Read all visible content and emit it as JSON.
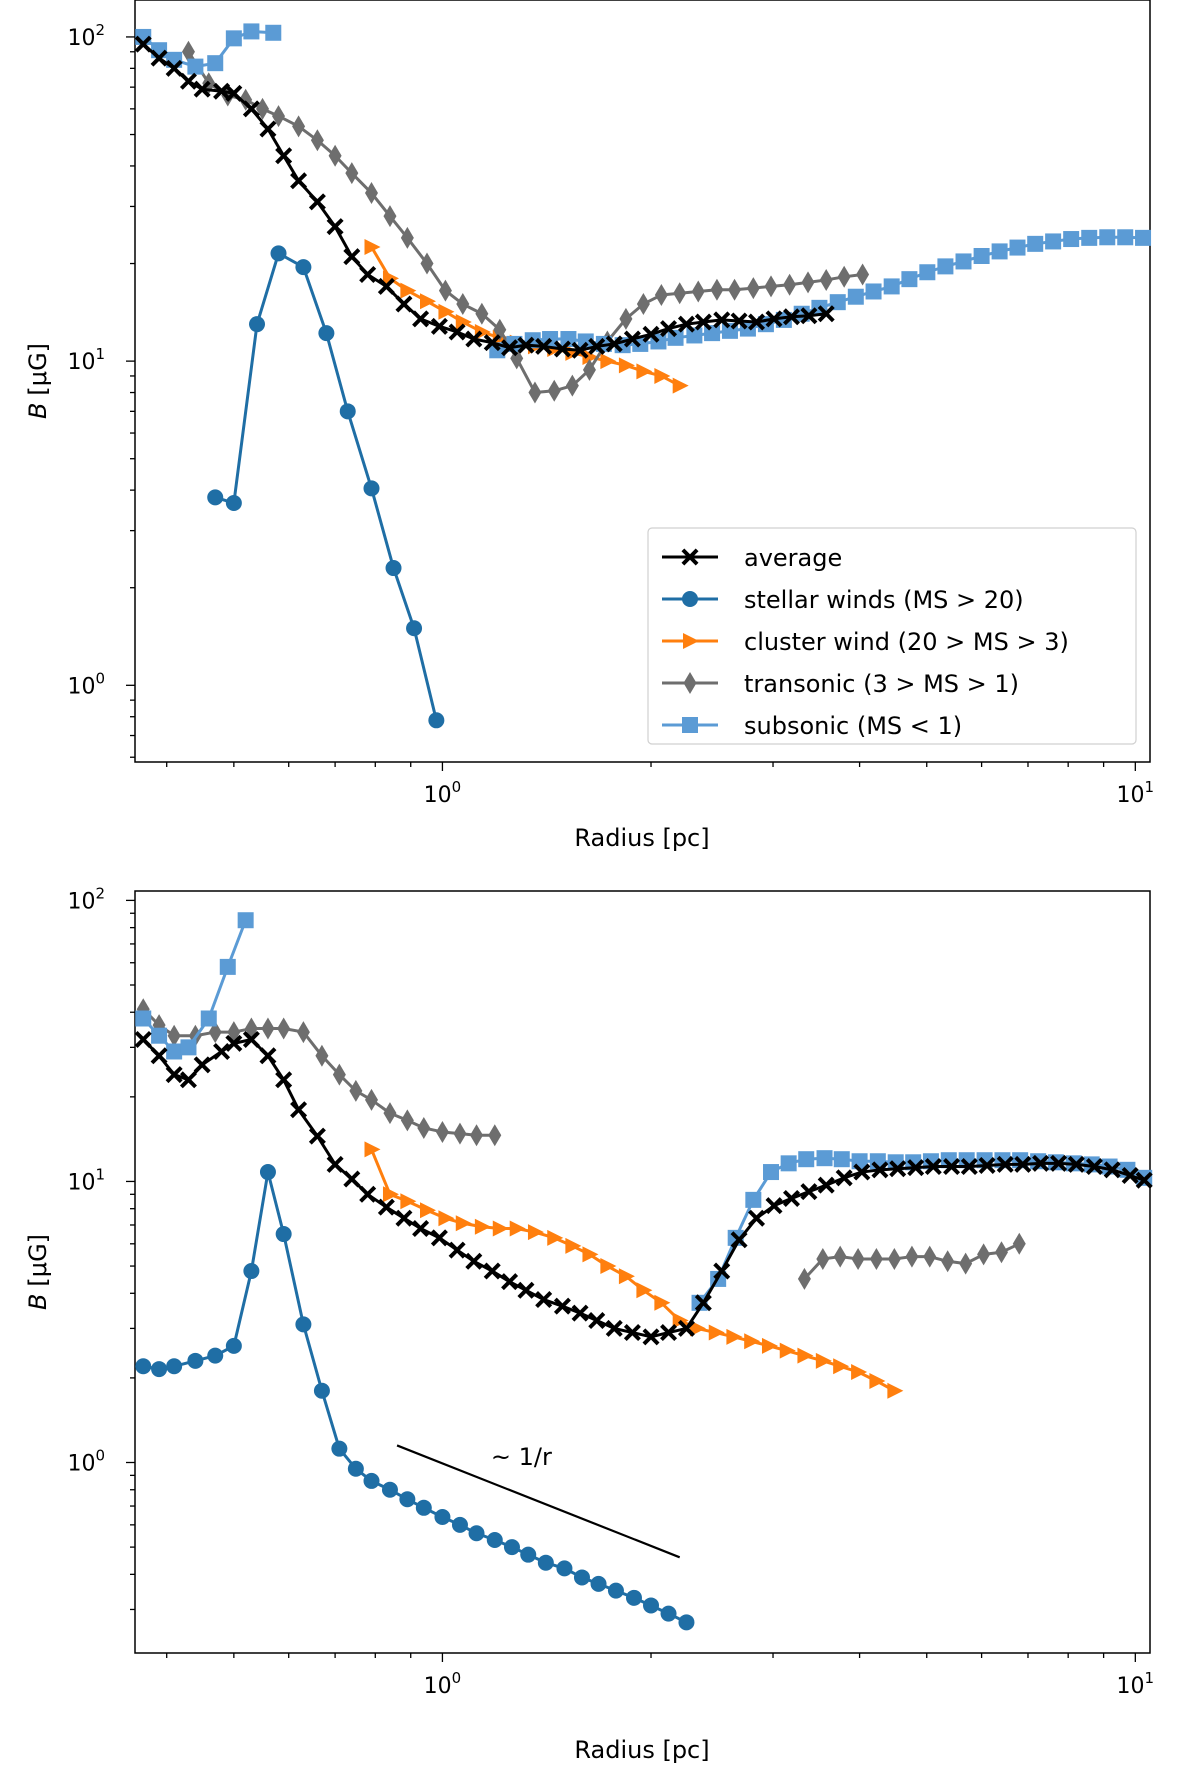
{
  "chart_data": [
    {
      "type": "line",
      "xscale": "log",
      "yscale": "log",
      "xlabel": "Radius [pc]",
      "ylabel_italic": "B",
      "ylabel_unit": "[μG]",
      "xlim": [
        0.36,
        10.5
      ],
      "ylim": [
        0.58,
        130
      ],
      "xticks": [
        {
          "base": "10",
          "exp": "0",
          "value": 1
        },
        {
          "base": "10",
          "exp": "1",
          "value": 10
        }
      ],
      "yticks": [
        {
          "base": "10",
          "exp": "0",
          "value": 1
        },
        {
          "base": "10",
          "exp": "1",
          "value": 10
        },
        {
          "base": "10",
          "exp": "2",
          "value": 100
        }
      ],
      "legend": {
        "position": "lower-right",
        "entries": [
          "average",
          "stellar winds (MS > 20)",
          "cluster wind (20 > MS > 3)",
          "transonic (3 > MS > 1)",
          "subsonic (MS < 1)"
        ]
      },
      "series": [
        {
          "name": "average",
          "color": "#000000",
          "marker": "X",
          "x": [
            0.37,
            0.39,
            0.41,
            0.43,
            0.45,
            0.48,
            0.5,
            0.53,
            0.56,
            0.59,
            0.62,
            0.66,
            0.7,
            0.74,
            0.78,
            0.83,
            0.88,
            0.93,
            0.99,
            1.05,
            1.11,
            1.18,
            1.25,
            1.32,
            1.4,
            1.49,
            1.58,
            1.67,
            1.77,
            1.88,
            2.0,
            2.12,
            2.25,
            2.38,
            2.53,
            2.68,
            2.84,
            3.01,
            3.19,
            3.38,
            3.58
          ],
          "y": [
            95,
            86,
            80,
            73,
            69,
            68,
            67,
            60,
            52,
            43,
            36,
            31,
            26,
            21,
            18.5,
            17,
            15,
            13.5,
            12.8,
            12.3,
            11.7,
            11.4,
            11.0,
            11.2,
            11.1,
            10.9,
            10.8,
            11.1,
            11.3,
            11.7,
            12.1,
            12.6,
            13.0,
            13.2,
            13.4,
            13.3,
            13.2,
            13.5,
            13.7,
            13.8,
            14.0
          ]
        },
        {
          "name": "stellar winds (MS > 20)",
          "color": "#1f6ea5",
          "marker": "o",
          "x": [
            0.47,
            0.5,
            0.54,
            0.58,
            0.63,
            0.68,
            0.73,
            0.79,
            0.85,
            0.91,
            0.98
          ],
          "y": [
            3.8,
            3.65,
            13,
            21.5,
            19.5,
            12.2,
            7,
            4.05,
            2.3,
            1.5,
            0.78
          ]
        },
        {
          "name": "cluster wind (20 > MS > 3)",
          "color": "#ff7f0e",
          "marker": ">",
          "x": [
            0.79,
            0.84,
            0.89,
            0.95,
            1.01,
            1.07,
            1.14,
            1.21,
            1.28,
            1.36,
            1.45,
            1.54,
            1.63,
            1.73,
            1.84,
            1.95,
            2.07,
            2.2
          ],
          "y": [
            22.5,
            18,
            16.5,
            15.3,
            14.2,
            13.2,
            12.3,
            11.8,
            11.4,
            11.1,
            10.9,
            10.6,
            10.3,
            10.0,
            9.7,
            9.3,
            9.0,
            8.4
          ]
        },
        {
          "name": "transonic (3 > MS > 1)",
          "color": "#6e6e6e",
          "marker": "d",
          "x": [
            0.43,
            0.46,
            0.49,
            0.52,
            0.55,
            0.58,
            0.62,
            0.66,
            0.7,
            0.74,
            0.79,
            0.84,
            0.89,
            0.95,
            1.01,
            1.07,
            1.14,
            1.21,
            1.28,
            1.36,
            1.45,
            1.54,
            1.63,
            1.73,
            1.84,
            1.95,
            2.07,
            2.2,
            2.34,
            2.49,
            2.64,
            2.81,
            2.98,
            3.17,
            3.37,
            3.58,
            3.8,
            4.04
          ],
          "y": [
            90,
            72,
            66,
            64,
            60,
            57,
            53,
            48,
            43,
            38,
            33,
            28,
            24,
            20,
            16.5,
            15.0,
            14.0,
            12.5,
            10.2,
            8.0,
            8.1,
            8.4,
            9.4,
            11.5,
            13.5,
            15.0,
            16.0,
            16.2,
            16.4,
            16.6,
            16.6,
            16.8,
            17.0,
            17.2,
            17.5,
            17.8,
            18.2,
            18.5
          ]
        },
        {
          "name": "subsonic (MS < 1)",
          "color": "#5b9bd5",
          "marker": "s",
          "x": [
            0.37,
            0.39,
            0.41,
            0.44,
            0.47,
            0.5,
            0.53,
            0.57,
            1.2,
            1.27,
            1.35,
            1.43,
            1.52,
            1.61,
            1.71,
            1.82,
            1.93,
            2.05,
            2.17,
            2.31,
            2.45,
            2.6,
            2.76,
            2.93,
            3.11,
            3.3,
            3.5,
            3.72,
            3.95,
            4.19,
            4.45,
            4.72,
            5.01,
            5.32,
            5.65,
            6.0,
            6.37,
            6.76,
            7.17,
            7.61,
            8.08,
            8.58,
            9.11,
            9.67,
            10.26
          ],
          "y": [
            100,
            91,
            85,
            81,
            83,
            99,
            104,
            103,
            10.8,
            11.3,
            11.6,
            11.7,
            11.7,
            11.5,
            11.3,
            11.2,
            11.3,
            11.5,
            11.8,
            12.0,
            12.2,
            12.4,
            12.6,
            13.0,
            13.4,
            14.0,
            14.6,
            15.2,
            15.8,
            16.4,
            17.0,
            17.9,
            18.8,
            19.6,
            20.3,
            21.1,
            21.8,
            22.4,
            23.0,
            23.4,
            23.8,
            24.0,
            24.1,
            24.1,
            24.0
          ]
        }
      ]
    },
    {
      "type": "line",
      "xscale": "log",
      "yscale": "log",
      "xlabel": "Radius [pc]",
      "ylabel_italic": "B",
      "ylabel_unit": "[μG]",
      "xlim": [
        0.36,
        10.5
      ],
      "ylim": [
        0.21,
        108
      ],
      "xticks": [
        {
          "base": "10",
          "exp": "0",
          "value": 1
        },
        {
          "base": "10",
          "exp": "1",
          "value": 10
        }
      ],
      "yticks": [
        {
          "base": "10",
          "exp": "0",
          "value": 1
        },
        {
          "base": "10",
          "exp": "1",
          "value": 10
        },
        {
          "base": "10",
          "exp": "2",
          "value": 100
        }
      ],
      "annotations": [
        {
          "text": "~ 1/r",
          "line_x": [
            0.86,
            2.2
          ],
          "line_y": [
            1.15,
            0.46
          ],
          "text_x": 1.3,
          "text_y": 0.98
        }
      ],
      "series": [
        {
          "name": "average",
          "color": "#000000",
          "marker": "X",
          "x": [
            0.37,
            0.39,
            0.41,
            0.43,
            0.45,
            0.48,
            0.5,
            0.53,
            0.56,
            0.59,
            0.62,
            0.66,
            0.7,
            0.74,
            0.78,
            0.83,
            0.88,
            0.93,
            0.99,
            1.05,
            1.11,
            1.18,
            1.25,
            1.32,
            1.4,
            1.49,
            1.58,
            1.67,
            1.77,
            1.88,
            2.0,
            2.12,
            2.25,
            2.38,
            2.53,
            2.68,
            2.84,
            3.01,
            3.19,
            3.38,
            3.58,
            3.8,
            4.03,
            4.28,
            4.54,
            4.82,
            5.11,
            5.43,
            5.76,
            6.11,
            6.49,
            6.88,
            7.3,
            7.75,
            8.22,
            8.73,
            9.26,
            9.83,
            10.3
          ],
          "y": [
            32,
            28,
            24,
            23,
            26,
            29,
            31,
            32,
            28,
            23,
            18,
            14.5,
            11.5,
            10.2,
            9.0,
            8.1,
            7.4,
            6.8,
            6.3,
            5.7,
            5.2,
            4.8,
            4.4,
            4.1,
            3.8,
            3.6,
            3.4,
            3.2,
            3.0,
            2.9,
            2.8,
            2.9,
            3.0,
            3.7,
            4.8,
            6.2,
            7.4,
            8.2,
            8.7,
            9.2,
            9.7,
            10.3,
            10.8,
            11.0,
            11.1,
            11.2,
            11.3,
            11.3,
            11.3,
            11.4,
            11.5,
            11.5,
            11.6,
            11.6,
            11.5,
            11.3,
            11.0,
            10.5,
            10.1
          ]
        },
        {
          "name": "stellar winds (MS > 20)",
          "color": "#1f6ea5",
          "marker": "o",
          "x": [
            0.37,
            0.39,
            0.41,
            0.44,
            0.47,
            0.5,
            0.53,
            0.56,
            0.59,
            0.63,
            0.67,
            0.71,
            0.75,
            0.79,
            0.84,
            0.89,
            0.94,
            1.0,
            1.06,
            1.12,
            1.19,
            1.26,
            1.33,
            1.41,
            1.5,
            1.59,
            1.68,
            1.78,
            1.89,
            2.0,
            2.12,
            2.25
          ],
          "y": [
            2.2,
            2.15,
            2.2,
            2.3,
            2.4,
            2.6,
            4.8,
            10.8,
            6.5,
            3.1,
            1.8,
            1.12,
            0.95,
            0.86,
            0.8,
            0.74,
            0.69,
            0.64,
            0.6,
            0.56,
            0.53,
            0.5,
            0.47,
            0.44,
            0.42,
            0.39,
            0.37,
            0.35,
            0.33,
            0.31,
            0.29,
            0.27
          ]
        },
        {
          "name": "cluster wind (20 > MS > 3)",
          "color": "#ff7f0e",
          "marker": ">",
          "x": [
            0.79,
            0.84,
            0.89,
            0.95,
            1.01,
            1.07,
            1.14,
            1.21,
            1.28,
            1.36,
            1.45,
            1.54,
            1.63,
            1.73,
            1.84,
            1.95,
            2.07,
            2.2,
            2.33,
            2.48,
            2.63,
            2.79,
            2.96,
            3.14,
            3.33,
            3.54,
            3.75,
            3.98,
            4.23,
            4.49
          ],
          "y": [
            13,
            9.0,
            8.5,
            7.9,
            7.4,
            7.1,
            6.9,
            6.8,
            6.8,
            6.6,
            6.3,
            5.9,
            5.5,
            5.0,
            4.6,
            4.1,
            3.7,
            3.2,
            3.0,
            2.9,
            2.8,
            2.7,
            2.6,
            2.5,
            2.4,
            2.3,
            2.2,
            2.1,
            1.95,
            1.8
          ]
        },
        {
          "name": "transonic (3 > MS > 1)",
          "color": "#6e6e6e",
          "marker": "d",
          "x": [
            0.37,
            0.39,
            0.41,
            0.44,
            0.47,
            0.5,
            0.53,
            0.56,
            0.59,
            0.63,
            0.67,
            0.71,
            0.75,
            0.79,
            0.84,
            0.89,
            0.94,
            1.0,
            1.06,
            1.12,
            1.19,
            3.33,
            3.54,
            3.75,
            3.98,
            4.23,
            4.49,
            4.76,
            5.05,
            5.36,
            5.69,
            6.04,
            6.41,
            6.8
          ],
          "y": [
            41,
            36,
            33,
            33,
            34,
            34,
            35,
            35,
            35,
            34,
            28,
            24,
            21,
            19.5,
            17.5,
            16.5,
            15.5,
            15.0,
            14.8,
            14.6,
            14.6,
            4.5,
            5.3,
            5.4,
            5.3,
            5.3,
            5.3,
            5.4,
            5.4,
            5.2,
            5.1,
            5.5,
            5.6,
            6.0
          ]
        },
        {
          "name": "subsonic (MS < 1)",
          "color": "#5b9bd5",
          "marker": "s",
          "x": [
            0.37,
            0.39,
            0.41,
            0.43,
            0.46,
            0.49,
            0.52,
            2.35,
            2.5,
            2.65,
            2.81,
            2.98,
            3.16,
            3.35,
            3.56,
            3.77,
            4.0,
            4.25,
            4.51,
            4.78,
            5.07,
            5.38,
            5.71,
            6.06,
            6.43,
            6.82,
            7.24,
            7.68,
            8.15,
            8.65,
            9.18,
            9.74,
            10.3
          ],
          "y": [
            38,
            33,
            29,
            30,
            38,
            58,
            85,
            3.7,
            4.5,
            6.3,
            8.6,
            10.8,
            11.6,
            12.0,
            12.1,
            12.0,
            11.8,
            11.8,
            11.7,
            11.7,
            11.8,
            11.9,
            11.9,
            11.9,
            11.9,
            11.9,
            11.8,
            11.7,
            11.6,
            11.5,
            11.3,
            11.0,
            10.3
          ]
        }
      ]
    }
  ]
}
